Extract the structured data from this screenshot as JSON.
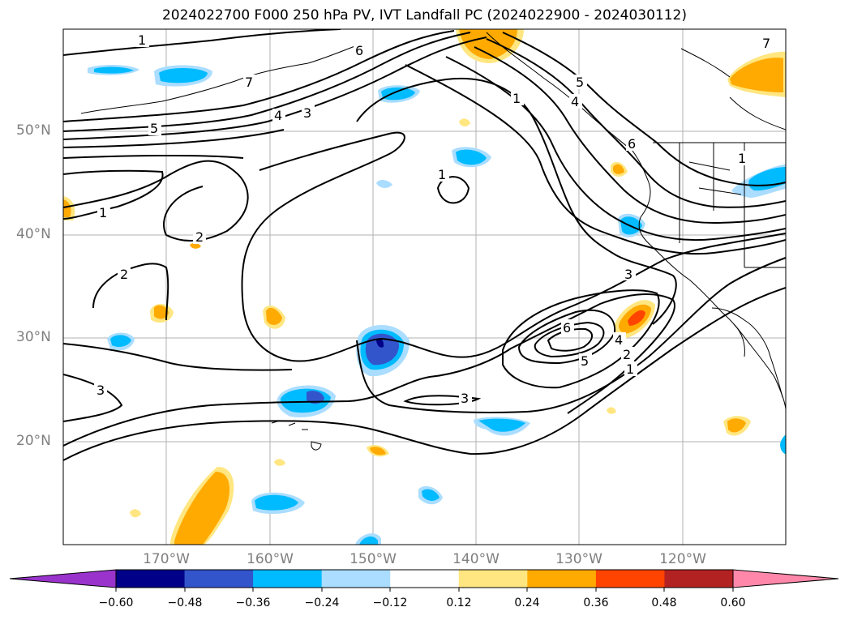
{
  "title": "2024022700 F000 250 hPa PV, IVT Landfall PC (2024022900 - 2024030112)",
  "lat_labels": [
    "50°N",
    "40°N",
    "30°N",
    "20°N"
  ],
  "lon_labels": [
    "170°W",
    "160°W",
    "150°W",
    "140°W",
    "130°W",
    "120°W"
  ],
  "colorbar": {
    "tick_labels": [
      "−0.60",
      "−0.48",
      "−0.36",
      "−0.24",
      "−0.12",
      "0.12",
      "0.24",
      "0.36",
      "0.48",
      "0.60"
    ],
    "colors": [
      "#9933cc",
      "#000088",
      "#3355cc",
      "#00bbff",
      "#aaddff",
      "#ffffff",
      "#ffe680",
      "#ffaa00",
      "#ff4400",
      "#b22222",
      "#ff88aa"
    ]
  },
  "contour_labels": [
    "1",
    "2",
    "2",
    "3",
    "3",
    "3",
    "4",
    "5",
    "6",
    "1",
    "1",
    "1",
    "2",
    "3",
    "4",
    "5",
    "6",
    "1",
    "1",
    "4",
    "5",
    "6",
    "7",
    "7"
  ]
}
